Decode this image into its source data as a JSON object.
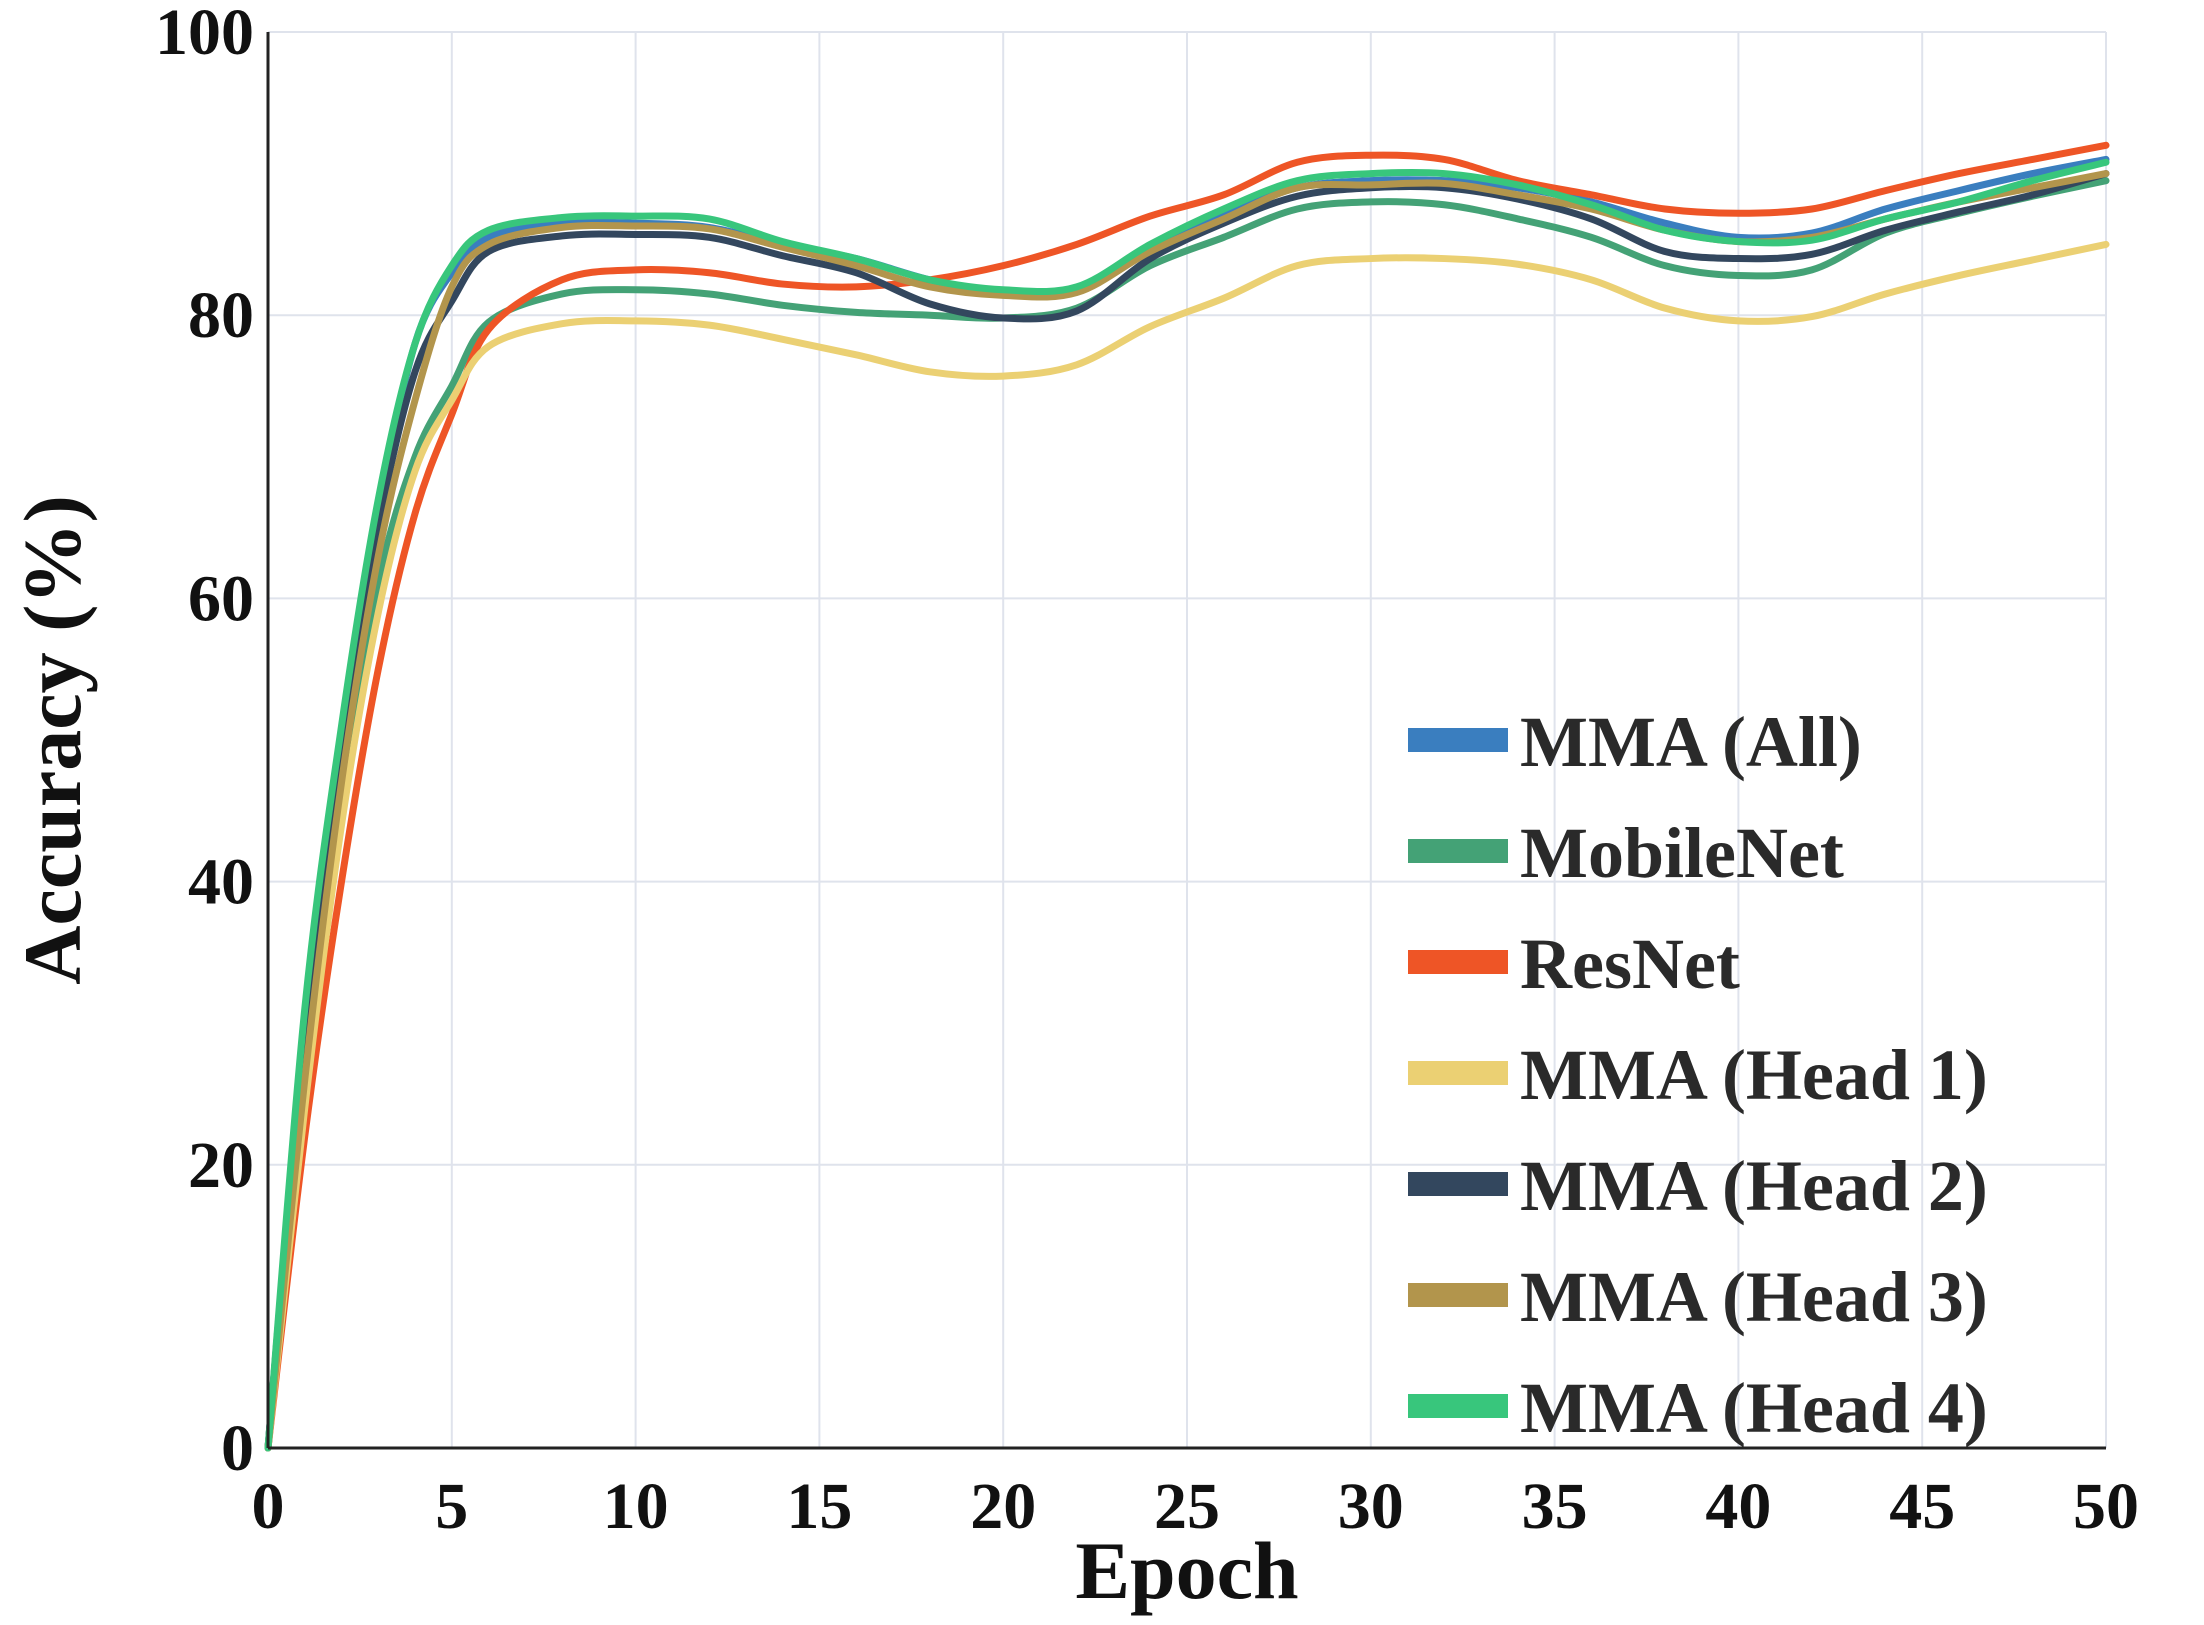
{
  "chart_data": {
    "type": "line",
    "xlabel": "Epoch",
    "ylabel": "Accuracy (%)",
    "xlim": [
      0,
      50
    ],
    "ylim": [
      0,
      100
    ],
    "xticks": [
      0,
      5,
      10,
      15,
      20,
      25,
      30,
      35,
      40,
      45,
      50
    ],
    "yticks": [
      0,
      20,
      40,
      60,
      80,
      100
    ],
    "grid": true,
    "legend_position": "bottom-right",
    "x": [
      0,
      1,
      2,
      3,
      4,
      5,
      6,
      8,
      10,
      12,
      14,
      16,
      18,
      20,
      22,
      24,
      26,
      28,
      30,
      32,
      34,
      36,
      38,
      40,
      42,
      44,
      46,
      48,
      50
    ],
    "series": [
      {
        "name": "MMA (All)",
        "color": "#3a7ebf",
        "values": [
          0,
          30,
          50,
          66,
          78,
          83,
          85.5,
          86.5,
          86.5,
          86.2,
          85,
          84,
          82.5,
          81.5,
          81.8,
          84.5,
          87,
          89,
          89.5,
          89.5,
          89,
          88,
          86.5,
          85.5,
          85.8,
          87.5,
          88.8,
          90,
          91
        ]
      },
      {
        "name": "MobileNet",
        "color": "#44a276",
        "values": [
          0,
          25,
          45,
          61,
          70,
          75,
          79.5,
          81.5,
          81.8,
          81.5,
          80.7,
          80.2,
          80,
          79.8,
          80.5,
          83.5,
          85.5,
          87.5,
          88,
          87.8,
          86.8,
          85.5,
          83.5,
          82.8,
          83.2,
          85.8,
          87.2,
          88.4,
          89.5
        ]
      },
      {
        "name": "ResNet",
        "color": "#ee5526",
        "values": [
          0,
          22,
          40,
          55,
          66,
          73,
          79,
          82.5,
          83.2,
          83,
          82.2,
          82,
          82.5,
          83.5,
          85,
          87,
          88.5,
          90.8,
          91.3,
          91,
          89.5,
          88.5,
          87.5,
          87.2,
          87.5,
          88.8,
          90,
          91,
          92
        ]
      },
      {
        "name": "MMA (Head 1)",
        "color": "#ebd073",
        "values": [
          0,
          24,
          44,
          59,
          69,
          74,
          77.8,
          79.4,
          79.6,
          79.3,
          78.3,
          77.2,
          76,
          75.7,
          76.5,
          79.2,
          81.2,
          83.5,
          84,
          84,
          83.6,
          82.5,
          80.5,
          79.6,
          79.9,
          81.5,
          82.8,
          83.9,
          85
        ]
      },
      {
        "name": "MMA (Head 2)",
        "color": "#33475e",
        "values": [
          0,
          30,
          49,
          65,
          76,
          81,
          84.5,
          85.6,
          85.7,
          85.5,
          84.2,
          83,
          80.8,
          79.8,
          80.3,
          84,
          86.5,
          88.4,
          89,
          89,
          88.2,
          86.8,
          84.5,
          84,
          84.3,
          86,
          87.3,
          88.5,
          90
        ]
      },
      {
        "name": "MMA (Head 3)",
        "color": "#b2954c",
        "values": [
          0,
          26,
          47,
          63,
          74,
          82,
          85,
          86.2,
          86.3,
          86.1,
          84.8,
          83.5,
          82,
          81.4,
          81.6,
          84.5,
          86.8,
          89,
          89.2,
          89.3,
          88.5,
          87.5,
          86,
          85.2,
          85.5,
          86.8,
          88,
          89,
          90
        ]
      },
      {
        "name": "MMA (Head 4)",
        "color": "#38c67c",
        "values": [
          0,
          31,
          51,
          67,
          78,
          83.5,
          86,
          86.9,
          87,
          86.8,
          85.2,
          84,
          82.5,
          81.8,
          82,
          85,
          87.5,
          89.5,
          90,
          90,
          89.2,
          87.8,
          86,
          85.2,
          85.3,
          86.8,
          88,
          89.5,
          90.8
        ]
      }
    ]
  }
}
